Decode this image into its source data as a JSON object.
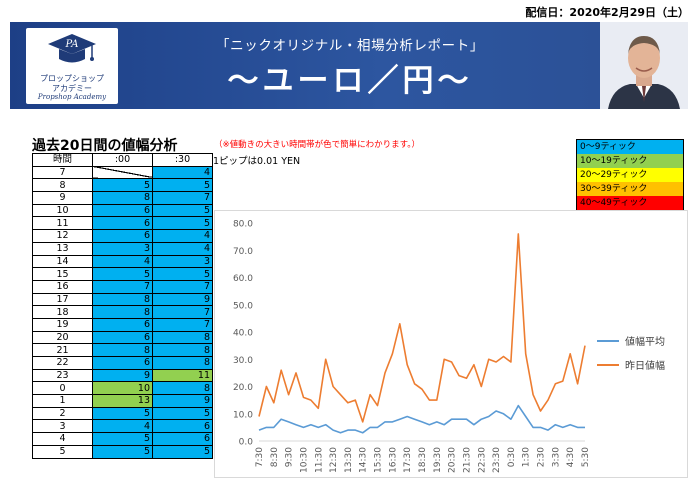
{
  "header": {
    "date": "配信日：2020年2月29日（土）",
    "subtitle": "「ニックオリジナル・相場分析レポート」",
    "title": "〜ユーロ／円〜",
    "logo": {
      "initials": "PA",
      "line1": "プロップショップ",
      "line2": "アカデミー",
      "line3": "Propshop Academy"
    }
  },
  "section": {
    "title": "過去20日間の値幅分析",
    "note": "（※値動きの大きい時間帯が色で簡単にわかります。）",
    "pip_note": "1ピップは0.01 YEN"
  },
  "legend_ranges": [
    {
      "label": "0〜9ティック",
      "color": "#00b0f0"
    },
    {
      "label": "10〜19ティック",
      "color": "#92d050"
    },
    {
      "label": "20〜29ティック",
      "color": "#ffff00"
    },
    {
      "label": "30〜39ティック",
      "color": "#ffc000"
    },
    {
      "label": "40〜49ティック",
      "color": "#ff0000"
    }
  ],
  "table": {
    "headers": [
      "時間",
      ":00",
      ":30"
    ],
    "rows": [
      {
        "hour": "7",
        "m00": "",
        "m30": "4"
      },
      {
        "hour": "8",
        "m00": "5",
        "m30": "5"
      },
      {
        "hour": "9",
        "m00": "8",
        "m30": "7"
      },
      {
        "hour": "10",
        "m00": "6",
        "m30": "5"
      },
      {
        "hour": "11",
        "m00": "6",
        "m30": "5"
      },
      {
        "hour": "12",
        "m00": "6",
        "m30": "4"
      },
      {
        "hour": "13",
        "m00": "3",
        "m30": "4"
      },
      {
        "hour": "14",
        "m00": "4",
        "m30": "3"
      },
      {
        "hour": "15",
        "m00": "5",
        "m30": "5"
      },
      {
        "hour": "16",
        "m00": "7",
        "m30": "7"
      },
      {
        "hour": "17",
        "m00": "8",
        "m30": "9"
      },
      {
        "hour": "18",
        "m00": "8",
        "m30": "7"
      },
      {
        "hour": "19",
        "m00": "6",
        "m30": "7"
      },
      {
        "hour": "20",
        "m00": "6",
        "m30": "8"
      },
      {
        "hour": "21",
        "m00": "8",
        "m30": "8"
      },
      {
        "hour": "22",
        "m00": "6",
        "m30": "8"
      },
      {
        "hour": "23",
        "m00": "9",
        "m30": "11"
      },
      {
        "hour": "0",
        "m00": "10",
        "m30": "8"
      },
      {
        "hour": "1",
        "m00": "13",
        "m30": "9"
      },
      {
        "hour": "2",
        "m00": "5",
        "m30": "5"
      },
      {
        "hour": "3",
        "m00": "4",
        "m30": "6"
      },
      {
        "hour": "4",
        "m00": "5",
        "m30": "6"
      },
      {
        "hour": "5",
        "m00": "5",
        "m30": "5"
      }
    ]
  },
  "chart_data": {
    "type": "line",
    "x": [
      "7:30",
      "8:00",
      "8:30",
      "9:00",
      "9:30",
      "10:00",
      "10:30",
      "11:00",
      "11:30",
      "12:00",
      "12:30",
      "13:00",
      "13:30",
      "14:00",
      "14:30",
      "15:00",
      "15:30",
      "16:00",
      "16:30",
      "17:00",
      "17:30",
      "18:00",
      "18:30",
      "19:00",
      "19:30",
      "20:00",
      "20:30",
      "21:00",
      "21:30",
      "22:00",
      "22:30",
      "23:00",
      "23:30",
      "0:00",
      "0:30",
      "1:00",
      "1:30",
      "2:00",
      "2:30",
      "3:00",
      "3:30",
      "4:00",
      "4:30",
      "5:00",
      "5:30"
    ],
    "xticks": [
      "7:30",
      "8:30",
      "9:30",
      "10:30",
      "11:30",
      "12:30",
      "13:30",
      "14:30",
      "15:30",
      "16:30",
      "17:30",
      "18:30",
      "19:30",
      "20:30",
      "21:30",
      "22:30",
      "23:30",
      "0:30",
      "1:30",
      "2:30",
      "3:30",
      "4:30",
      "5:30"
    ],
    "series": [
      {
        "name": "値幅平均",
        "color": "#5b9bd5",
        "values": [
          4,
          5,
          5,
          8,
          7,
          6,
          5,
          6,
          5,
          6,
          4,
          3,
          4,
          4,
          3,
          5,
          5,
          7,
          7,
          8,
          9,
          8,
          7,
          6,
          7,
          6,
          8,
          8,
          8,
          6,
          8,
          9,
          11,
          10,
          8,
          13,
          9,
          5,
          5,
          4,
          6,
          5,
          6,
          5,
          5
        ]
      },
      {
        "name": "昨日値幅",
        "color": "#ed7d31",
        "values": [
          9,
          20,
          14,
          26,
          17,
          25,
          16,
          15,
          12,
          30,
          20,
          17,
          14,
          15,
          7,
          17,
          13,
          25,
          32,
          43,
          28,
          21,
          19,
          15,
          15,
          30,
          29,
          24,
          23,
          28,
          20,
          30,
          29,
          31,
          29,
          76,
          32,
          17,
          11,
          15,
          21,
          22,
          32,
          21,
          35
        ]
      }
    ],
    "ylim": [
      0,
      80
    ],
    "yticks": [
      "0.0",
      "10.0",
      "20.0",
      "30.0",
      "40.0",
      "50.0",
      "60.0",
      "70.0",
      "80.0"
    ],
    "grid": false,
    "legend": "right"
  }
}
